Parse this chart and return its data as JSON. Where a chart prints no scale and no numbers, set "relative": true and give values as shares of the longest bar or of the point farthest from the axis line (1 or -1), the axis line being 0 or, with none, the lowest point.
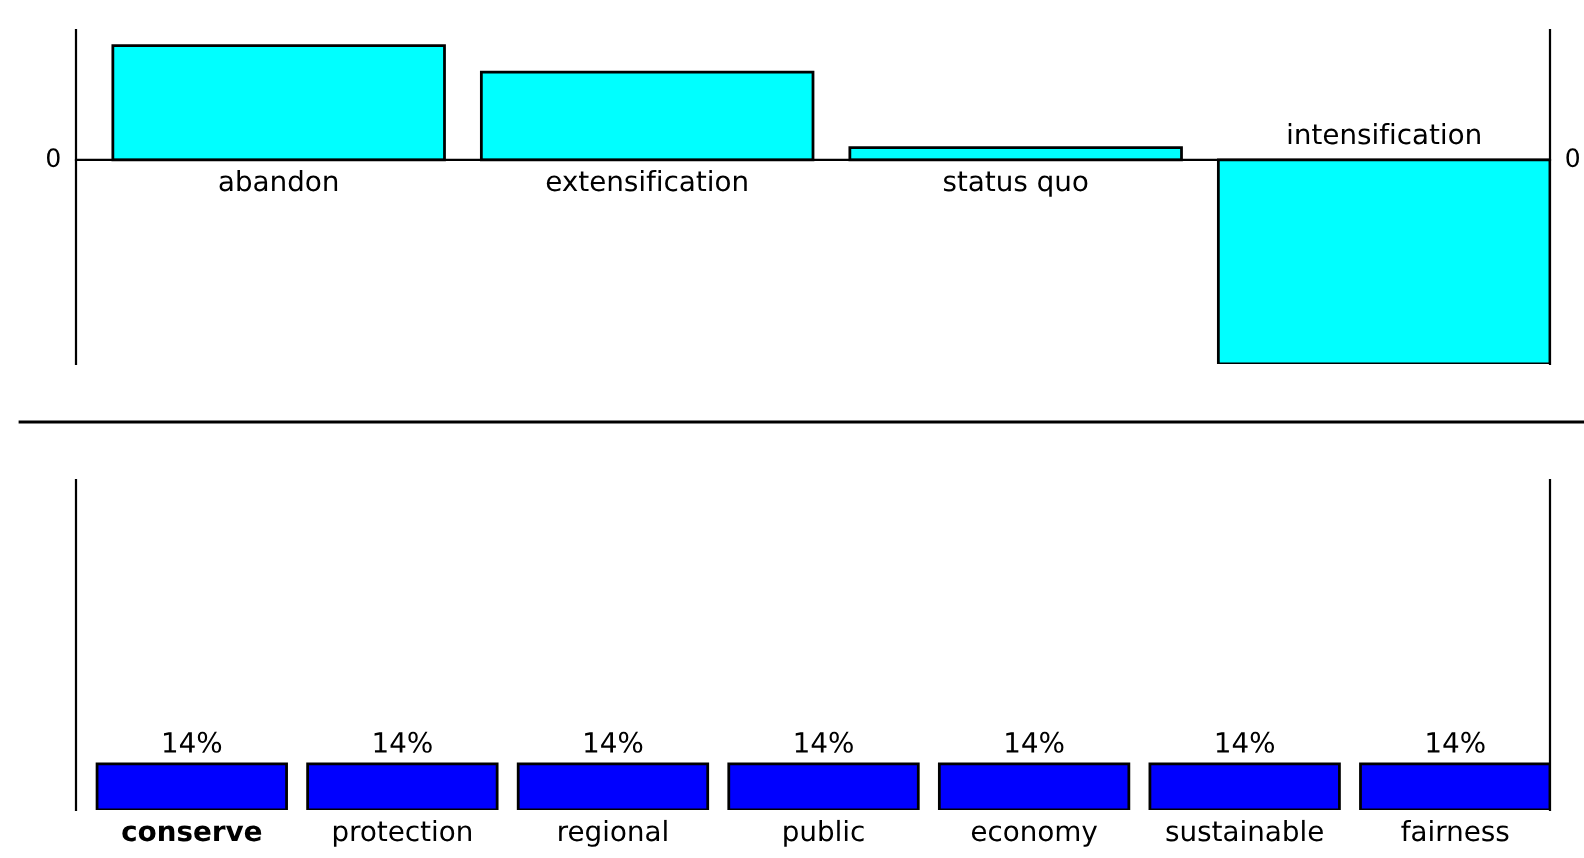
{
  "chart_data": [
    {
      "type": "bar",
      "categories": [
        "abandon",
        "extensification",
        "status quo",
        "intensification"
      ],
      "values": [
        0.56,
        0.43,
        0.06,
        -1
      ],
      "color": "#00ffff",
      "relative": true,
      "annotations": [
        "0"
      ]
    },
    {
      "type": "bar",
      "categories": [
        "conserve",
        "protection",
        "regional",
        "public",
        "economy",
        "sustainable",
        "fairness"
      ],
      "values": [
        14,
        14,
        14,
        14,
        14,
        14,
        14
      ],
      "value_labels": [
        "14%",
        "14%",
        "14%",
        "14%",
        "14%",
        "14%",
        "14%"
      ],
      "color": "#0000ff",
      "ylim": [
        0,
        100
      ]
    }
  ]
}
